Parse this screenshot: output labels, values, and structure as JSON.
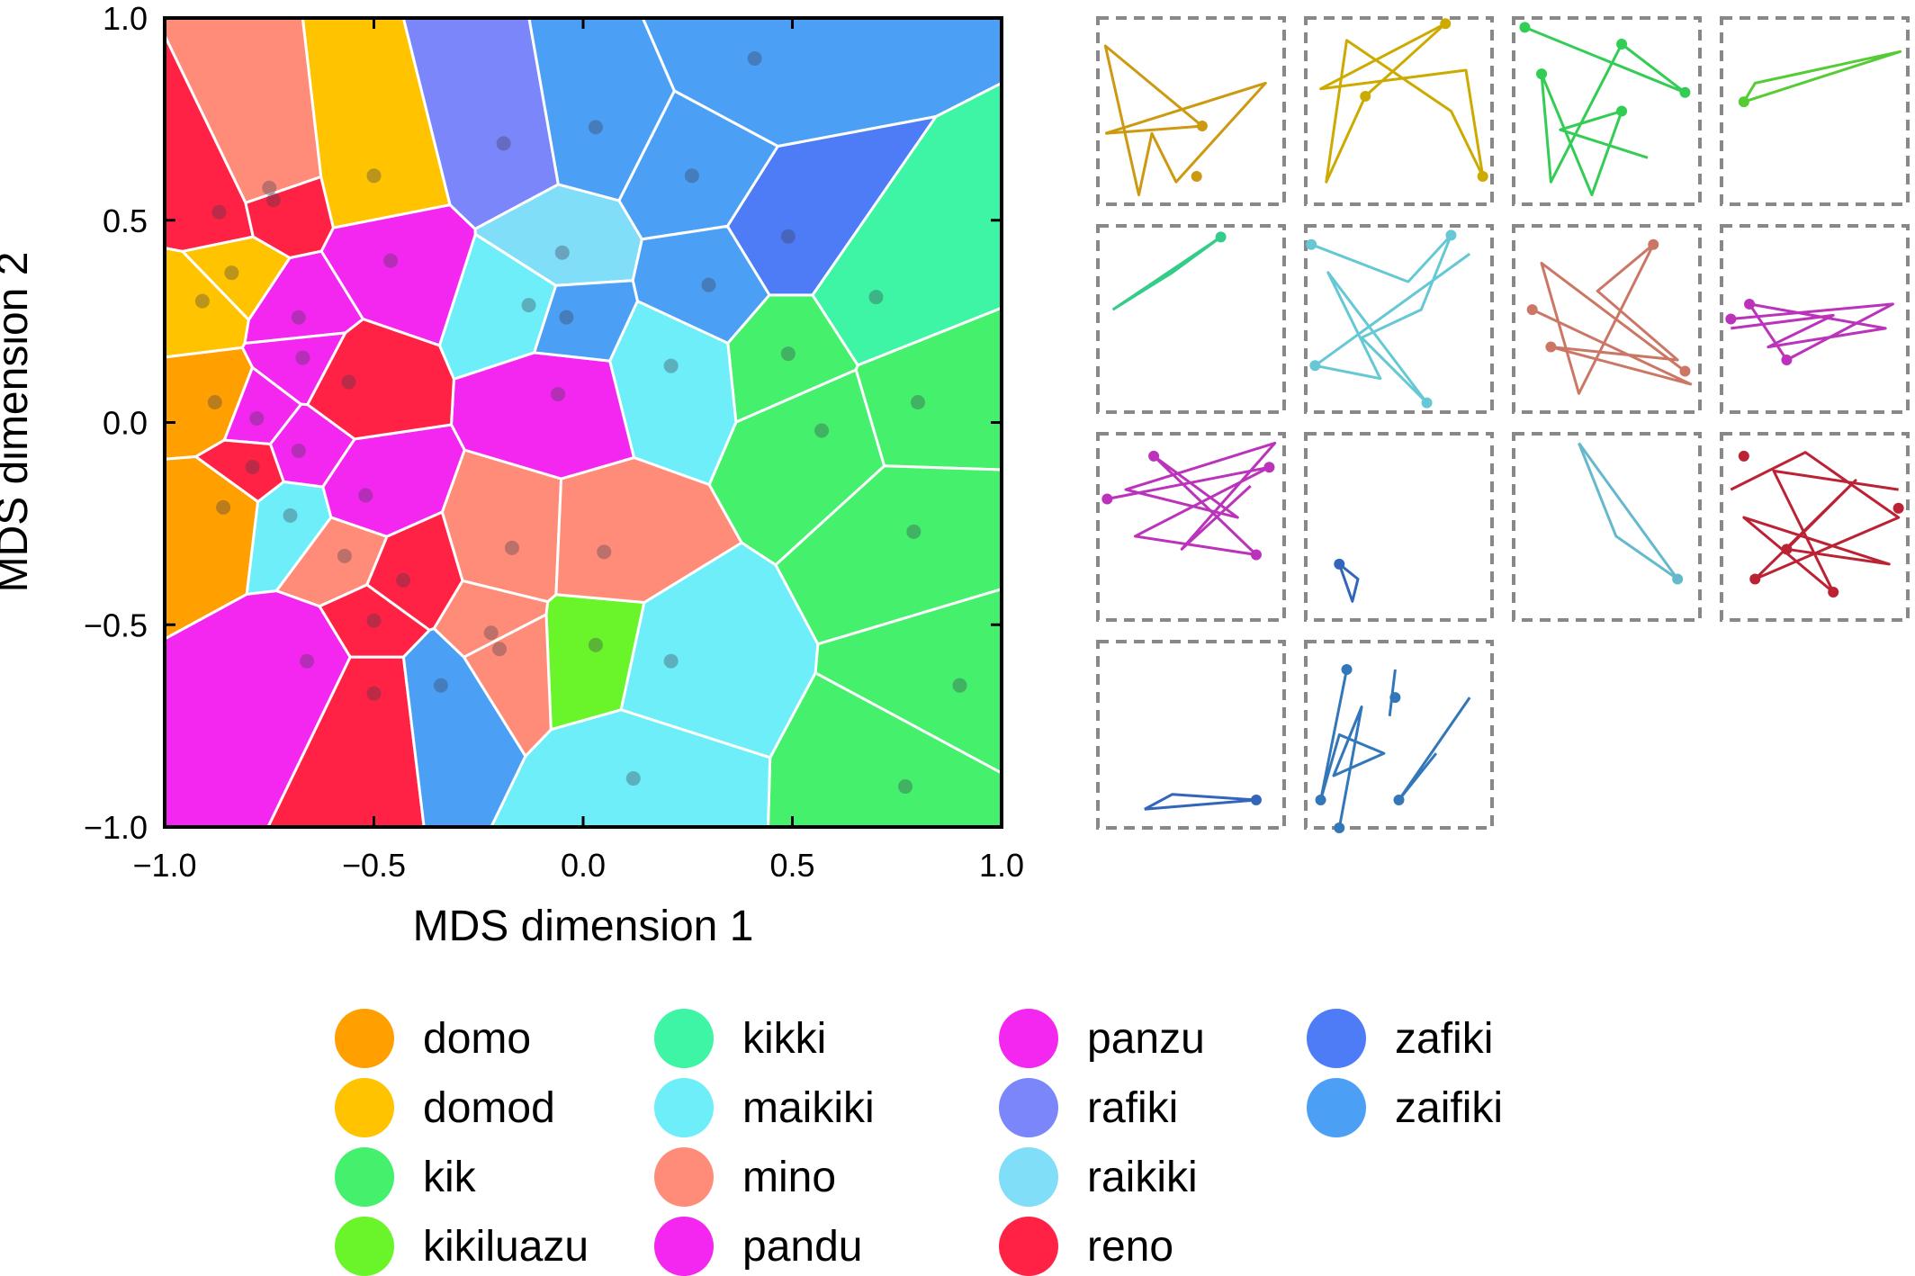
{
  "chart_data": [
    {
      "type": "scatter",
      "subtype": "voronoi",
      "xlabel": "MDS dimension 1",
      "ylabel": "MDS dimension 2",
      "xlim": [
        -1.0,
        1.0
      ],
      "ylim": [
        -1.0,
        1.0
      ],
      "xticks": [
        "−1.0",
        "−0.5",
        "0.0",
        "0.5",
        "1.0"
      ],
      "yticks": [
        "−1.0",
        "−0.5",
        "0.0",
        "0.5",
        "1.0"
      ],
      "cell_borders": "#ffffff",
      "points": [
        {
          "x": -0.88,
          "y": 0.05,
          "series": "domo"
        },
        {
          "x": -0.86,
          "y": -0.21,
          "series": "domo"
        },
        {
          "x": -0.91,
          "y": 0.3,
          "series": "domod"
        },
        {
          "x": -0.84,
          "y": 0.37,
          "series": "domod"
        },
        {
          "x": -0.5,
          "y": 0.61,
          "series": "domod"
        },
        {
          "x": 0.7,
          "y": 0.31,
          "series": "kikki"
        },
        {
          "x": 0.49,
          "y": 0.17,
          "series": "kik"
        },
        {
          "x": 0.57,
          "y": -0.02,
          "series": "kik"
        },
        {
          "x": 0.8,
          "y": 0.05,
          "series": "kik"
        },
        {
          "x": 0.79,
          "y": -0.27,
          "series": "kik"
        },
        {
          "x": 0.9,
          "y": -0.65,
          "series": "kik"
        },
        {
          "x": 0.77,
          "y": -0.9,
          "series": "kik"
        },
        {
          "x": 0.03,
          "y": -0.55,
          "series": "kikiluazu"
        },
        {
          "x": -0.13,
          "y": 0.29,
          "series": "maikiki"
        },
        {
          "x": 0.21,
          "y": 0.14,
          "series": "maikiki"
        },
        {
          "x": -0.7,
          "y": -0.23,
          "series": "maikiki"
        },
        {
          "x": 0.21,
          "y": -0.59,
          "series": "maikiki"
        },
        {
          "x": 0.12,
          "y": -0.88,
          "series": "maikiki"
        },
        {
          "x": -0.75,
          "y": 0.58,
          "series": "mino"
        },
        {
          "x": -0.57,
          "y": -0.33,
          "series": "mino"
        },
        {
          "x": -0.17,
          "y": -0.31,
          "series": "mino"
        },
        {
          "x": 0.05,
          "y": -0.32,
          "series": "mino"
        },
        {
          "x": -0.22,
          "y": -0.52,
          "series": "mino"
        },
        {
          "x": -0.2,
          "y": -0.56,
          "series": "mino"
        },
        {
          "x": -0.78,
          "y": 0.01,
          "series": "pandu"
        },
        {
          "x": -0.68,
          "y": 0.26,
          "series": "pandu"
        },
        {
          "x": -0.66,
          "y": -0.59,
          "series": "pandu"
        },
        {
          "x": -0.67,
          "y": 0.16,
          "series": "panzu"
        },
        {
          "x": -0.46,
          "y": 0.4,
          "series": "panzu"
        },
        {
          "x": -0.06,
          "y": 0.07,
          "series": "panzu"
        },
        {
          "x": -0.68,
          "y": -0.07,
          "series": "panzu"
        },
        {
          "x": -0.52,
          "y": -0.18,
          "series": "panzu"
        },
        {
          "x": -0.19,
          "y": 0.69,
          "series": "rafiki"
        },
        {
          "x": -0.05,
          "y": 0.42,
          "series": "raikiki"
        },
        {
          "x": -0.87,
          "y": 0.52,
          "series": "reno"
        },
        {
          "x": -0.74,
          "y": 0.55,
          "series": "reno"
        },
        {
          "x": -0.56,
          "y": 0.1,
          "series": "reno"
        },
        {
          "x": -0.79,
          "y": -0.11,
          "series": "reno"
        },
        {
          "x": -0.43,
          "y": -0.39,
          "series": "reno"
        },
        {
          "x": -0.5,
          "y": -0.49,
          "series": "reno"
        },
        {
          "x": -0.5,
          "y": -0.67,
          "series": "reno"
        },
        {
          "x": 0.49,
          "y": 0.46,
          "series": "zafiki"
        },
        {
          "x": 0.03,
          "y": 0.73,
          "series": "zaifiki"
        },
        {
          "x": 0.41,
          "y": 0.9,
          "series": "zaifiki"
        },
        {
          "x": 0.26,
          "y": 0.61,
          "series": "zaifiki"
        },
        {
          "x": 0.3,
          "y": 0.34,
          "series": "zaifiki"
        },
        {
          "x": -0.04,
          "y": 0.26,
          "series": "zaifiki"
        },
        {
          "x": -0.34,
          "y": -0.65,
          "series": "zaifiki"
        }
      ]
    },
    {
      "type": "line",
      "subtype": "small-multiples",
      "grid": [
        4,
        4
      ],
      "panel_border": "dashed",
      "panels": [
        {
          "color": "#CC9910",
          "paths": [
            [
              [
                0.04,
                0.62
              ],
              [
                0.9,
                0.35
              ],
              [
                0.42,
                0.88
              ],
              [
                0.29,
                0.62
              ],
              [
                0.22,
                0.95
              ],
              [
                0.04,
                0.15
              ],
              [
                0.56,
                0.58
              ],
              [
                0.04,
                0.62
              ]
            ]
          ],
          "dots": [
            [
              0.56,
              0.58
            ],
            [
              0.53,
              0.85
            ]
          ]
        },
        {
          "color": "#CCAA00",
          "paths": [
            [
              [
                0.75,
                0.03
              ],
              [
                0.32,
                0.42
              ],
              [
                0.11,
                0.88
              ],
              [
                0.22,
                0.12
              ],
              [
                0.78,
                0.5
              ],
              [
                0.95,
                0.85
              ],
              [
                0.86,
                0.28
              ],
              [
                0.08,
                0.38
              ],
              [
                0.75,
                0.03
              ]
            ]
          ],
          "dots": [
            [
              0.75,
              0.03
            ],
            [
              0.32,
              0.42
            ],
            [
              0.95,
              0.85
            ]
          ]
        },
        {
          "color": "#33CC55",
          "paths": [
            [
              [
                0.06,
                0.05
              ],
              [
                0.92,
                0.4
              ],
              [
                0.58,
                0.14
              ],
              [
                0.2,
                0.88
              ],
              [
                0.15,
                0.3
              ],
              [
                0.42,
                0.95
              ],
              [
                0.58,
                0.5
              ],
              [
                0.25,
                0.6
              ],
              [
                0.72,
                0.75
              ]
            ]
          ],
          "dots": [
            [
              0.06,
              0.05
            ],
            [
              0.92,
              0.4
            ],
            [
              0.58,
              0.14
            ],
            [
              0.15,
              0.3
            ],
            [
              0.58,
              0.5
            ]
          ]
        },
        {
          "color": "#55CC33",
          "paths": [
            [
              [
                0.12,
                0.45
              ],
              [
                0.96,
                0.18
              ],
              [
                0.18,
                0.35
              ],
              [
                0.12,
                0.45
              ]
            ]
          ],
          "dots": [
            [
              0.12,
              0.45
            ]
          ]
        },
        {
          "color": "#33CC88",
          "paths": [
            [
              [
                0.08,
                0.45
              ],
              [
                0.66,
                0.06
              ],
              [
                0.4,
                0.25
              ],
              [
                0.08,
                0.45
              ]
            ]
          ],
          "dots": [
            [
              0.66,
              0.06
            ]
          ]
        },
        {
          "color": "#66C8D4",
          "paths": [
            [
              [
                0.03,
                0.1
              ],
              [
                0.55,
                0.3
              ],
              [
                0.78,
                0.05
              ],
              [
                0.62,
                0.45
              ],
              [
                0.3,
                0.6
              ],
              [
                0.65,
                0.95
              ],
              [
                0.12,
                0.25
              ],
              [
                0.4,
                0.82
              ],
              [
                0.05,
                0.75
              ],
              [
                0.88,
                0.15
              ]
            ]
          ],
          "dots": [
            [
              0.03,
              0.1
            ],
            [
              0.78,
              0.05
            ],
            [
              0.05,
              0.75
            ],
            [
              0.65,
              0.95
            ]
          ]
        },
        {
          "color": "#CC7766",
          "paths": [
            [
              [
                0.1,
                0.45
              ],
              [
                0.95,
                0.85
              ],
              [
                0.2,
                0.65
              ],
              [
                0.88,
                0.72
              ],
              [
                0.45,
                0.35
              ],
              [
                0.75,
                0.1
              ],
              [
                0.35,
                0.9
              ],
              [
                0.15,
                0.2
              ],
              [
                0.92,
                0.78
              ]
            ]
          ],
          "dots": [
            [
              0.1,
              0.45
            ],
            [
              0.2,
              0.65
            ],
            [
              0.75,
              0.1
            ],
            [
              0.92,
              0.78
            ]
          ]
        },
        {
          "color": "#BB33BB",
          "paths": [
            [
              [
                0.05,
                0.5
              ],
              [
                0.92,
                0.42
              ],
              [
                0.35,
                0.72
              ],
              [
                0.15,
                0.42
              ],
              [
                0.88,
                0.55
              ],
              [
                0.25,
                0.65
              ],
              [
                0.6,
                0.48
              ],
              [
                0.05,
                0.55
              ]
            ]
          ],
          "dots": [
            [
              0.05,
              0.5
            ],
            [
              0.15,
              0.42
            ],
            [
              0.35,
              0.72
            ]
          ]
        },
        {
          "color": "#BB33BB",
          "paths": [
            [
              [
                0.05,
                0.35
              ],
              [
                0.92,
                0.18
              ],
              [
                0.2,
                0.55
              ],
              [
                0.85,
                0.65
              ],
              [
                0.3,
                0.12
              ],
              [
                0.75,
                0.45
              ],
              [
                0.15,
                0.3
              ],
              [
                0.95,
                0.05
              ],
              [
                0.45,
                0.62
              ],
              [
                0.82,
                0.28
              ]
            ]
          ],
          "dots": [
            [
              0.05,
              0.35
            ],
            [
              0.92,
              0.18
            ],
            [
              0.85,
              0.65
            ],
            [
              0.3,
              0.12
            ]
          ]
        },
        {
          "color": "#3366BB",
          "paths": [
            [
              [
                0.18,
                0.7
              ],
              [
                0.25,
                0.9
              ],
              [
                0.28,
                0.78
              ],
              [
                0.18,
                0.7
              ]
            ]
          ],
          "dots": [
            [
              0.18,
              0.7
            ]
          ]
        },
        {
          "color": "#66B8CC",
          "paths": [
            [
              [
                0.35,
                0.05
              ],
              [
                0.55,
                0.55
              ],
              [
                0.88,
                0.78
              ],
              [
                0.35,
                0.05
              ]
            ]
          ],
          "dots": [
            [
              0.88,
              0.78
            ]
          ]
        },
        {
          "color": "#BB2233",
          "paths": [
            [
              [
                0.05,
                0.3
              ],
              [
                0.45,
                0.1
              ],
              [
                0.95,
                0.45
              ],
              [
                0.18,
                0.78
              ],
              [
                0.72,
                0.25
              ],
              [
                0.35,
                0.62
              ],
              [
                0.9,
                0.7
              ],
              [
                0.12,
                0.45
              ],
              [
                0.6,
                0.85
              ],
              [
                0.28,
                0.2
              ],
              [
                0.95,
                0.3
              ]
            ]
          ],
          "dots": [
            [
              0.12,
              0.12
            ],
            [
              0.95,
              0.4
            ],
            [
              0.18,
              0.78
            ],
            [
              0.35,
              0.62
            ],
            [
              0.6,
              0.85
            ]
          ]
        },
        {
          "color": "#3366BB",
          "paths": [
            [
              [
                0.25,
                0.9
              ],
              [
                0.85,
                0.85
              ],
              [
                0.4,
                0.82
              ],
              [
                0.25,
                0.9
              ]
            ]
          ],
          "dots": [
            [
              0.85,
              0.85
            ]
          ]
        },
        {
          "color": "#3377BB",
          "paths": [
            [
              [
                0.22,
                0.15
              ],
              [
                0.08,
                0.85
              ],
              [
                0.18,
                0.5
              ],
              [
                0.42,
                0.6
              ],
              [
                0.15,
                0.72
              ],
              [
                0.3,
                0.35
              ],
              [
                0.18,
                1.0
              ]
            ],
            [
              [
                0.48,
                0.15
              ],
              [
                0.45,
                0.4
              ]
            ],
            [
              [
                0.88,
                0.3
              ],
              [
                0.5,
                0.85
              ],
              [
                0.7,
                0.6
              ]
            ]
          ],
          "dots": [
            [
              0.22,
              0.15
            ],
            [
              0.08,
              0.85
            ],
            [
              0.18,
              1.0
            ],
            [
              0.48,
              0.3
            ],
            [
              0.5,
              0.85
            ]
          ]
        }
      ]
    }
  ],
  "legend": [
    {
      "label": "domo",
      "color": "#FF9F00"
    },
    {
      "label": "domod",
      "color": "#FFC300"
    },
    {
      "label": "kik",
      "color": "#44F06C"
    },
    {
      "label": "kikiluazu",
      "color": "#69F52A"
    },
    {
      "label": "kikki",
      "color": "#3DF5A4"
    },
    {
      "label": "maikiki",
      "color": "#6EEEF8"
    },
    {
      "label": "mino",
      "color": "#FF8C78"
    },
    {
      "label": "pandu",
      "color": "#F427F0"
    },
    {
      "label": "panzu",
      "color": "#F427F0"
    },
    {
      "label": "rafiki",
      "color": "#7A86FA"
    },
    {
      "label": "raikiki",
      "color": "#80DEF8"
    },
    {
      "label": "reno",
      "color": "#FF2244"
    },
    {
      "label": "zafiki",
      "color": "#4D7CF6"
    },
    {
      "label": "zaifiki",
      "color": "#4BA0F6"
    }
  ]
}
